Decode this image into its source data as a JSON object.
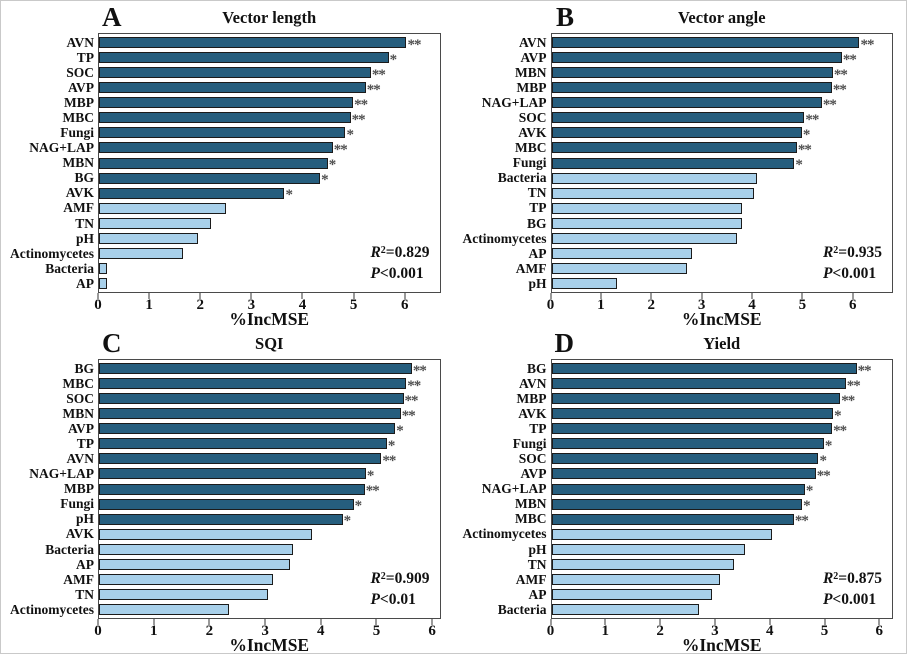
{
  "figure": {
    "xlabel": "%IncMSE",
    "colors": {
      "significant": "#265e7e",
      "nonsignificant": "#a8d0ea",
      "bar_border": "#1b1b1b",
      "frame": "#4a4a4a",
      "asterisk": "#4d4d4d"
    }
  },
  "chart_data": [
    {
      "type": "bar",
      "orientation": "horizontal",
      "panel_letter": "A",
      "title": "Vector length",
      "categories": [
        "AVN",
        "TP",
        "SOC",
        "AVP",
        "MBP",
        "MBC",
        "Fungi",
        "NAG+LAP",
        "MBN",
        "BG",
        "AVK",
        "AMF",
        "TN",
        "pH",
        "Actinomycetes",
        "Bacteria",
        "AP"
      ],
      "values": [
        6.05,
        5.7,
        5.35,
        5.25,
        5.0,
        4.95,
        4.85,
        4.6,
        4.5,
        4.35,
        3.65,
        2.5,
        2.2,
        1.95,
        1.65,
        0.15,
        0.15
      ],
      "significance": [
        "**",
        "*",
        "**",
        "**",
        "**",
        "**",
        "*",
        "**",
        "*",
        "*",
        "*",
        "",
        "",
        "",
        "",
        "",
        ""
      ],
      "xlabel": "%IncMSE",
      "xlim": [
        0,
        6.7
      ],
      "xticks": [
        0,
        1,
        2,
        3,
        4,
        5,
        6
      ],
      "grid": false,
      "legend": false,
      "r_squared": 0.829,
      "p_value": "<0.001",
      "annotation": {
        "r_label": "R",
        "r_sup": "2",
        "r_eq": "=0.829",
        "p_label": "P",
        "p_rest": "<0.001"
      }
    },
    {
      "type": "bar",
      "orientation": "horizontal",
      "panel_letter": "B",
      "title": "Vector angle",
      "categories": [
        "AVN",
        "AVP",
        "MBN",
        "MBP",
        "NAG+LAP",
        "SOC",
        "AVK",
        "MBC",
        "Fungi",
        "Bacteria",
        "TN",
        "TP",
        "BG",
        "Actinomycetes",
        "AP",
        "AMF",
        "pH"
      ],
      "values": [
        6.15,
        5.8,
        5.62,
        5.6,
        5.4,
        5.05,
        5.0,
        4.9,
        4.85,
        4.1,
        4.05,
        3.8,
        3.8,
        3.7,
        2.8,
        2.7,
        1.3
      ],
      "significance": [
        "**",
        "**",
        "**",
        "**",
        "**",
        "**",
        "*",
        "**",
        "*",
        "",
        "",
        "",
        "",
        "",
        "",
        "",
        ""
      ],
      "xlabel": "%IncMSE",
      "xlim": [
        0,
        6.8
      ],
      "xticks": [
        0,
        1,
        2,
        3,
        4,
        5,
        6
      ],
      "grid": false,
      "legend": false,
      "r_squared": 0.935,
      "p_value": "<0.001",
      "annotation": {
        "r_label": "R",
        "r_sup": "2",
        "r_eq": "=0.935",
        "p_label": "P",
        "p_rest": "<0.001"
      }
    },
    {
      "type": "bar",
      "orientation": "horizontal",
      "panel_letter": "C",
      "title": "SQI",
      "categories": [
        "BG",
        "MBC",
        "SOC",
        "MBN",
        "AVP",
        "TP",
        "AVN",
        "NAG+LAP",
        "MBP",
        "Fungi",
        "pH",
        "AVK",
        "Bacteria",
        "AP",
        "AMF",
        "TN",
        "Actinomycetes"
      ],
      "values": [
        5.65,
        5.55,
        5.5,
        5.45,
        5.35,
        5.2,
        5.1,
        4.82,
        4.8,
        4.6,
        4.4,
        3.85,
        3.5,
        3.45,
        3.15,
        3.05,
        2.35
      ],
      "significance": [
        "**",
        "**",
        "**",
        "**",
        "*",
        "*",
        "**",
        "*",
        "**",
        "*",
        "*",
        "",
        "",
        "",
        "",
        "",
        ""
      ],
      "xlabel": "%IncMSE",
      "xlim": [
        0,
        6.15
      ],
      "xticks": [
        0,
        1,
        2,
        3,
        4,
        5,
        6
      ],
      "grid": false,
      "legend": false,
      "r_squared": 0.909,
      "p_value": "<0.01",
      "annotation": {
        "r_label": "R",
        "r_sup": "2",
        "r_eq": "=0.909",
        "p_label": "P",
        "p_rest": "<0.01"
      }
    },
    {
      "type": "bar",
      "orientation": "horizontal",
      "panel_letter": "D",
      "title": "Yield",
      "categories": [
        "BG",
        "AVN",
        "MBP",
        "AVK",
        "TP",
        "Fungi",
        "SOC",
        "AVP",
        "NAG+LAP",
        "MBN",
        "MBC",
        "Actinomycetes",
        "pH",
        "TN",
        "AMF",
        "AP",
        "Bacteria"
      ],
      "values": [
        5.6,
        5.4,
        5.3,
        5.17,
        5.15,
        5.0,
        4.9,
        4.85,
        4.65,
        4.6,
        4.45,
        4.05,
        3.55,
        3.35,
        3.1,
        2.95,
        2.7
      ],
      "significance": [
        "**",
        "**",
        "**",
        "*",
        "**",
        "*",
        "*",
        "**",
        "*",
        "*",
        "**",
        "",
        "",
        "",
        "",
        "",
        ""
      ],
      "xlabel": "%IncMSE",
      "xlim": [
        0,
        6.25
      ],
      "xticks": [
        0,
        1,
        2,
        3,
        4,
        5,
        6
      ],
      "grid": false,
      "legend": false,
      "r_squared": 0.875,
      "p_value": "<0.001",
      "annotation": {
        "r_label": "R",
        "r_sup": "2",
        "r_eq": "=0.875",
        "p_label": "P",
        "p_rest": "<0.001"
      }
    }
  ]
}
